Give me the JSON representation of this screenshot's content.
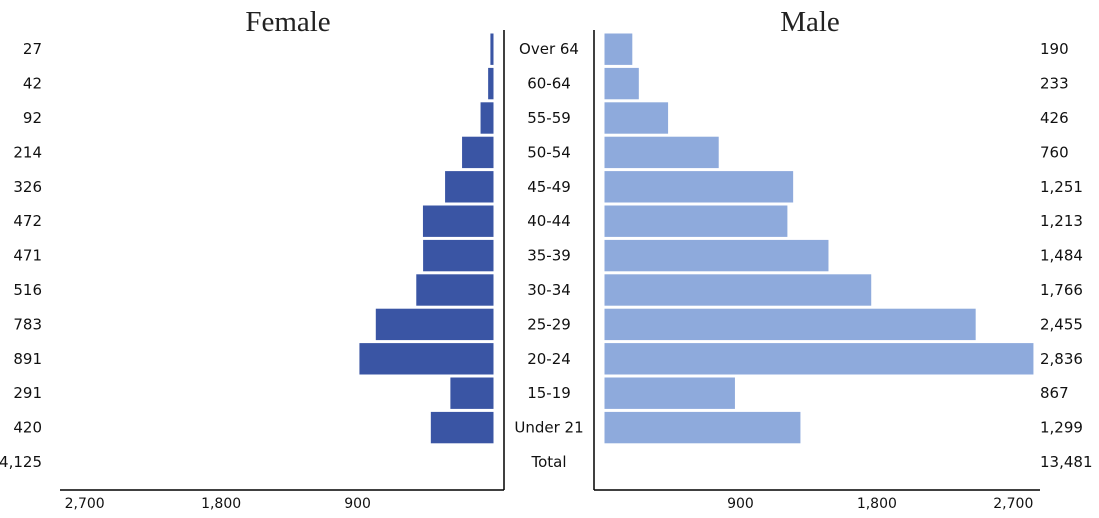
{
  "chart_data": {
    "type": "bar",
    "layout": "population-pyramid",
    "categories": [
      "Over 64",
      "60-64",
      "55-59",
      "50-54",
      "45-49",
      "40-44",
      "35-39",
      "30-34",
      "25-29",
      "20-24",
      "15-19",
      "Under 21"
    ],
    "series": [
      {
        "name": "Female",
        "values": [
          27,
          42,
          92,
          214,
          326,
          472,
          471,
          516,
          783,
          891,
          291,
          420
        ],
        "value_labels": [
          "27",
          "42",
          "92",
          "214",
          "326",
          "472",
          "471",
          "516",
          "783",
          "891",
          "291",
          "420"
        ],
        "total_label": "4,125",
        "color": "#3a55a4"
      },
      {
        "name": "Male",
        "values": [
          190,
          233,
          426,
          760,
          1251,
          1213,
          1484,
          1766,
          2455,
          2836,
          867,
          1299
        ],
        "value_labels": [
          "190",
          "233",
          "426",
          "760",
          "1,251",
          "1,213",
          "1,484",
          "1,766",
          "2,455",
          "2,836",
          "867",
          "1,299"
        ],
        "total_label": "13,481",
        "color": "#8eaadc"
      }
    ],
    "total_category": "Total",
    "axis_ticks": [
      "2,700",
      "1,800",
      "900"
    ],
    "axis_tick_values": [
      2700,
      1800,
      900
    ],
    "xlim": [
      0,
      2850
    ],
    "grid": false,
    "legend": "none"
  }
}
